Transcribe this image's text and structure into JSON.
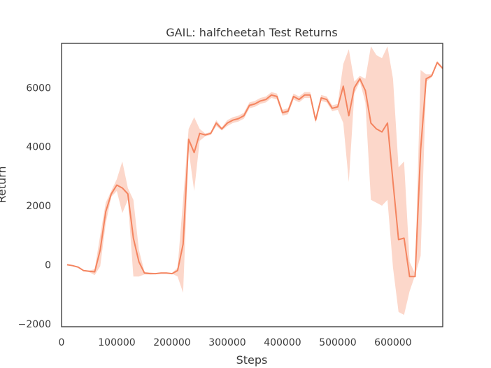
{
  "chart_data": {
    "type": "line",
    "title": "GAIL: halfcheetah Test Returns",
    "xlabel": "Steps",
    "ylabel": "Return",
    "xlim": [
      0,
      690000
    ],
    "ylim": [
      -2100,
      7500
    ],
    "xticks": [
      0,
      100000,
      200000,
      300000,
      400000,
      500000,
      600000
    ],
    "xtick_labels": [
      "0",
      "100000",
      "200000",
      "300000",
      "400000",
      "500000",
      "600000"
    ],
    "yticks": [
      -2000,
      0,
      2000,
      4000,
      6000
    ],
    "ytick_labels": [
      "−2000",
      "0",
      "2000",
      "4000",
      "6000"
    ],
    "grid": false,
    "colors": {
      "line": "#f4845f",
      "band": "#fcd5c7",
      "frame": "#333333"
    },
    "series": [
      {
        "x": [
          10000,
          20000,
          30000,
          40000,
          50000,
          60000,
          70000,
          80000,
          90000,
          100000,
          110000,
          120000,
          130000,
          140000,
          150000,
          160000,
          170000,
          180000,
          190000,
          200000,
          210000,
          220000,
          230000,
          240000,
          250000,
          260000,
          270000,
          280000,
          290000,
          300000,
          310000,
          320000,
          330000,
          340000,
          350000,
          360000,
          370000,
          380000,
          390000,
          400000,
          410000,
          420000,
          430000,
          440000,
          450000,
          460000,
          470000,
          480000,
          490000,
          500000,
          510000,
          520000,
          530000,
          540000,
          550000,
          560000,
          570000,
          580000,
          590000,
          600000,
          610000,
          620000,
          630000,
          640000,
          650000,
          660000,
          670000,
          680000,
          690000
        ],
        "y": [
          0,
          -30,
          -80,
          -200,
          -220,
          -240,
          500,
          1800,
          2400,
          2700,
          2600,
          2400,
          900,
          100,
          -280,
          -300,
          -300,
          -280,
          -280,
          -300,
          -200,
          700,
          4250,
          3800,
          4450,
          4400,
          4450,
          4800,
          4600,
          4800,
          4900,
          4950,
          5050,
          5400,
          5450,
          5550,
          5600,
          5750,
          5700,
          5150,
          5200,
          5700,
          5600,
          5750,
          5750,
          4900,
          5650,
          5600,
          5300,
          5350,
          6050,
          5050,
          6000,
          6300,
          5900,
          4800,
          4600,
          4500,
          4800,
          2800,
          850,
          900,
          -400,
          -400,
          3900,
          6300,
          6400,
          6850,
          6650
        ],
        "y_low": [
          0,
          -30,
          -80,
          -200,
          -250,
          -350,
          -50,
          1400,
          2300,
          2500,
          1750,
          2200,
          -400,
          -400,
          -330,
          -330,
          -320,
          -300,
          -300,
          -300,
          -400,
          -950,
          3900,
          2500,
          4200,
          4350,
          4400,
          4700,
          4550,
          4700,
          4800,
          4850,
          4950,
          5300,
          5350,
          5450,
          5500,
          5650,
          5600,
          5050,
          5100,
          5600,
          5500,
          5650,
          5650,
          4800,
          5550,
          5500,
          5200,
          5250,
          4800,
          2800,
          5800,
          6200,
          5500,
          2200,
          2100,
          2000,
          2200,
          -100,
          -1600,
          -1700,
          -900,
          -350,
          300,
          6200,
          6350,
          6800,
          6650
        ],
        "y_high": [
          0,
          -30,
          -80,
          -200,
          -200,
          -150,
          1000,
          2100,
          2500,
          2900,
          3500,
          2600,
          2200,
          500,
          -240,
          -260,
          -280,
          -260,
          -260,
          -280,
          -100,
          2200,
          4600,
          5000,
          4600,
          4450,
          4500,
          4900,
          4650,
          4900,
          5000,
          5050,
          5150,
          5500,
          5550,
          5650,
          5700,
          5850,
          5800,
          5250,
          5300,
          5800,
          5700,
          5850,
          5850,
          5000,
          5750,
          5700,
          5400,
          5450,
          6800,
          7300,
          6200,
          6400,
          6300,
          7400,
          7100,
          7000,
          7400,
          6300,
          3300,
          3500,
          100,
          -300,
          6600,
          6450,
          6450,
          6900,
          6700
        ]
      }
    ]
  }
}
